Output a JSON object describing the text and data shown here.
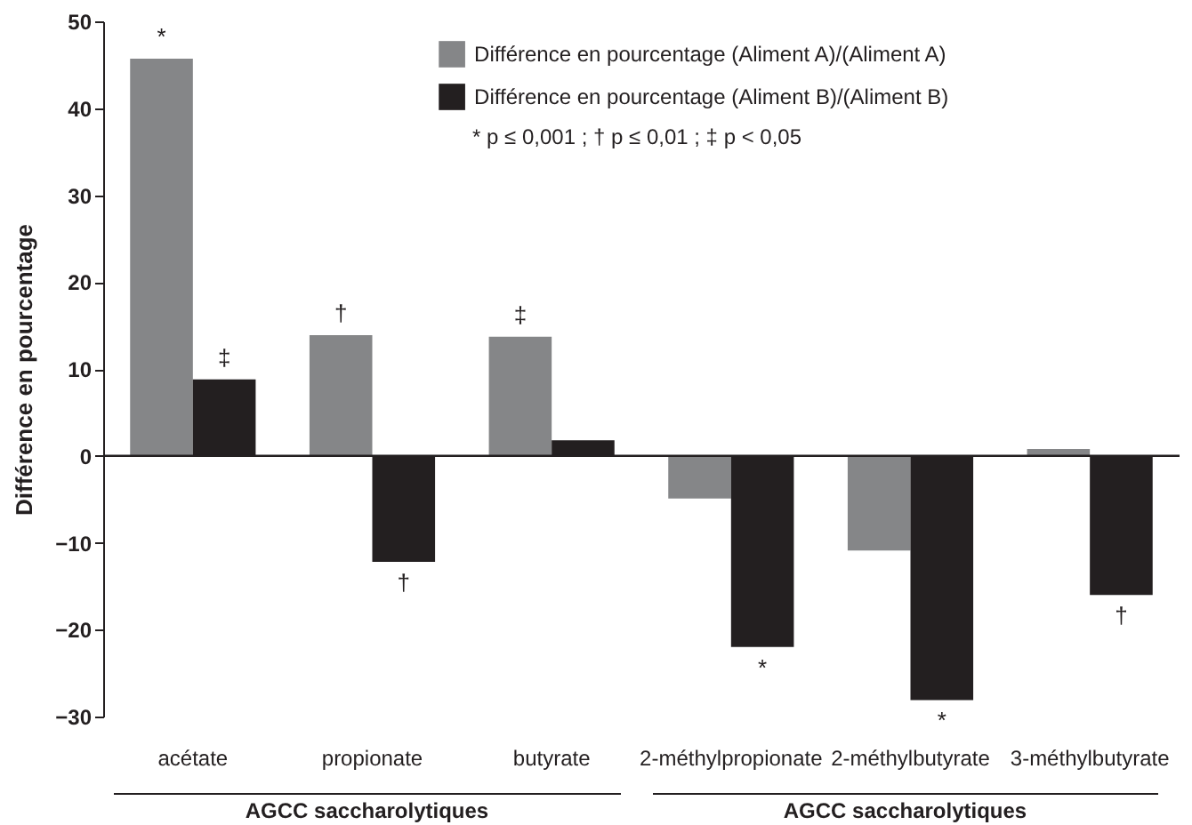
{
  "chart_data": {
    "type": "bar",
    "ylabel": "Différence en pourcentage",
    "categories": [
      "acétate",
      "propionate",
      "butyrate",
      "2-méthylpropionate",
      "2-méthylbutyrate",
      "3-méthylbutyrate"
    ],
    "series": [
      {
        "name": "Différence en pourcentage (Aliment A)/(Aliment A)",
        "color": "#858688",
        "values": [
          45.7,
          13.9,
          13.7,
          -4.9,
          -10.9,
          0.8
        ],
        "value_labels": [
          "*",
          "†",
          "‡",
          null,
          null,
          null
        ]
      },
      {
        "name": "Différence en pourcentage (Aliment B)/(Aliment B)",
        "color": "#231f20",
        "values": [
          8.8,
          -12.2,
          1.8,
          -22,
          -28.1,
          -16
        ],
        "value_labels": [
          "‡",
          "†",
          null,
          "*",
          "*",
          "†"
        ]
      }
    ],
    "ylim": [
      -30,
      50
    ],
    "yticks": [
      -30,
      -20,
      -10,
      0,
      10,
      20,
      30,
      40,
      50
    ],
    "grid": false,
    "legend": "top right",
    "ref_lines": [
      {
        "axis": "y",
        "value": 0,
        "color": "#231f20"
      }
    ],
    "annotations": [
      "* p ≤ 0,001 ; † p ≤ 0,01 ; ‡ p < 0,05",
      "AGCC saccharolytiques",
      "AGCC saccharolytiques"
    ]
  }
}
